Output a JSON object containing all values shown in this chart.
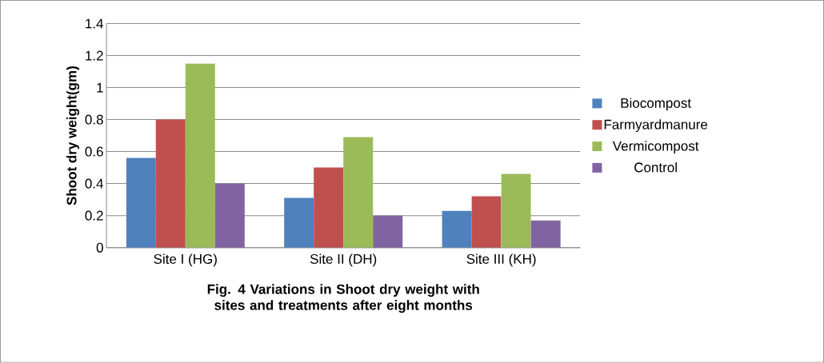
{
  "chart_data": {
    "type": "bar",
    "title": "Fig. 4 Variations in Shoot dry weight with sites and treatments after eight months",
    "ylabel": "Shoot dry weight(gm)",
    "categories": [
      "Site I (HG)",
      "Site II (DH)",
      "Site III (KH)"
    ],
    "series": [
      {
        "name": "Biocompost",
        "color": "#4f81bd",
        "values": [
          0.56,
          0.31,
          0.23
        ]
      },
      {
        "name": "Farmyardmanure",
        "color": "#c0504d",
        "values": [
          0.8,
          0.5,
          0.32
        ]
      },
      {
        "name": "Vermicompost",
        "color": "#9bbb59",
        "values": [
          1.15,
          0.69,
          0.46
        ]
      },
      {
        "name": "Control",
        "color": "#8064a2",
        "values": [
          0.4,
          0.2,
          0.17
        ]
      }
    ],
    "ylim": [
      0,
      1.4
    ],
    "yticks": [
      0,
      0.2,
      0.4,
      0.6,
      0.8,
      1,
      1.2,
      1.4
    ],
    "grid": "y",
    "legend": "right"
  }
}
